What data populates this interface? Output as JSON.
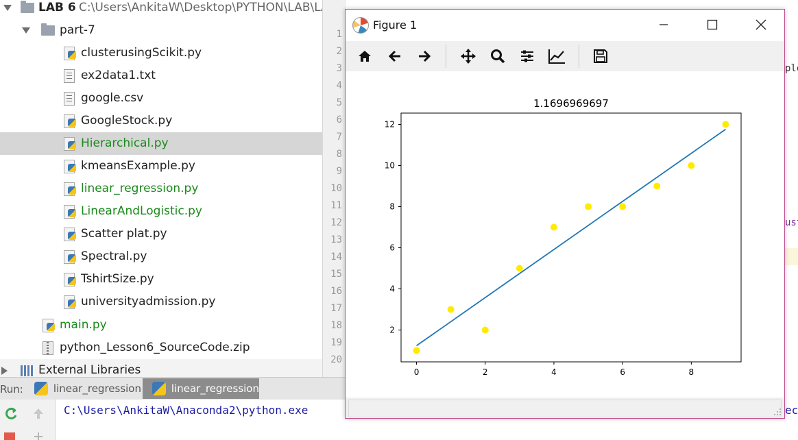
{
  "project": {
    "root_name": "LAB 6",
    "root_path": "C:\\Users\\AnkitaW\\Desktop\\PYTHON\\LAB\\LAB",
    "folder": "part-7",
    "files": [
      {
        "name": "clusterusingScikit.py",
        "icon": "python-file-icon",
        "green": false
      },
      {
        "name": "ex2data1.txt",
        "icon": "text-file-icon",
        "green": false
      },
      {
        "name": "google.csv",
        "icon": "text-file-icon",
        "green": false
      },
      {
        "name": "GoogleStock.py",
        "icon": "python-file-icon",
        "green": false
      },
      {
        "name": "Hierarchical.py",
        "icon": "python-file-icon",
        "green": true
      },
      {
        "name": "kmeansExample.py",
        "icon": "python-file-icon",
        "green": false
      },
      {
        "name": "linear_regression.py",
        "icon": "python-file-icon",
        "green": true
      },
      {
        "name": "LinearAndLogistic.py",
        "icon": "python-file-icon",
        "green": true
      },
      {
        "name": "Scatter plat.py",
        "icon": "python-file-icon",
        "green": false
      },
      {
        "name": "Spectral.py",
        "icon": "python-file-icon",
        "green": false
      },
      {
        "name": "TshirtSize.py",
        "icon": "python-file-icon",
        "green": false
      },
      {
        "name": "universityadmission.py",
        "icon": "python-file-icon",
        "green": false
      }
    ],
    "selected_index": 4,
    "main_file": "main.py",
    "zip_file": "python_Lesson6_SourceCode.zip",
    "external_libraries": "External Libraries"
  },
  "editor": {
    "line_numbers": [
      "1",
      "2",
      "3",
      "4",
      "5",
      "6",
      "7",
      "8",
      "9",
      "10",
      "11",
      "12",
      "13",
      "14",
      "15",
      "16",
      "17",
      "18",
      "19",
      "20"
    ],
    "current_line": "14",
    "fragments": [
      "plo",
      "ust"
    ]
  },
  "run": {
    "label": "Run:",
    "tabs": [
      "linear_regression",
      "linear_regression"
    ],
    "active_tab": 1,
    "console_text": "C:\\Users\\AnkitaW\\Anaconda2\\python.exe",
    "console_tail": "ec"
  },
  "figure_window": {
    "title": "Figure 1",
    "toolbar": [
      "home-icon",
      "back-arrow-icon",
      "forward-arrow-icon",
      "pan-icon",
      "zoom-icon",
      "subplots-config-icon",
      "axes-edit-icon",
      "save-icon"
    ]
  },
  "chart_data": {
    "type": "scatter",
    "title": "1.1696969697",
    "xlabel": "",
    "ylabel": "",
    "x": [
      0,
      1,
      2,
      3,
      4,
      5,
      6,
      7,
      8,
      9
    ],
    "y": [
      1,
      3,
      2,
      5,
      7,
      8,
      8,
      9,
      10,
      12
    ],
    "scatter_color": "#ffeb00",
    "fit_line": {
      "x": [
        0,
        9
      ],
      "y": [
        1.236,
        11.764
      ],
      "color": "#1f77b4"
    },
    "xlim": [
      -0.45,
      9.45
    ],
    "ylim": [
      0.45,
      12.55
    ],
    "xticks": [
      0,
      2,
      4,
      6,
      8
    ],
    "yticks": [
      2,
      4,
      6,
      8,
      10,
      12
    ],
    "grid": false,
    "legend": "none"
  }
}
